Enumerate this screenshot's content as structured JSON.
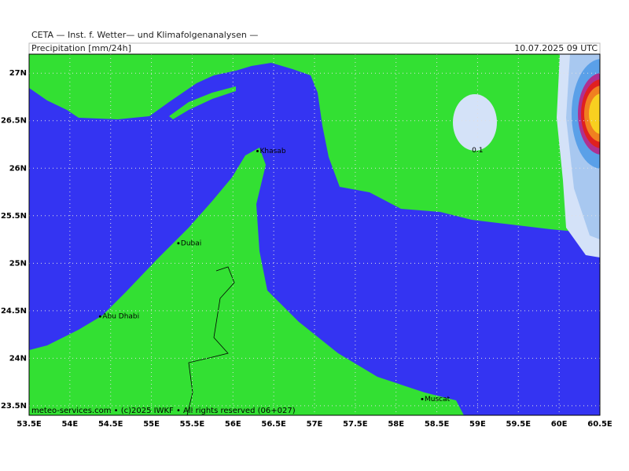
{
  "header": {
    "institute": "CETA — Inst. f. Wetter— und Klimafolgenanalysen —",
    "title": "Precipitation [mm/24h]",
    "valid_time": "10.07.2025 09 UTC"
  },
  "map": {
    "lonlim": [
      53.5,
      60.5
    ],
    "latlim": [
      23.4,
      27.2
    ],
    "lon_ticks": [
      {
        "value": 53.5,
        "label": "53.5E"
      },
      {
        "value": 54,
        "label": "54E"
      },
      {
        "value": 54.5,
        "label": "54.5E"
      },
      {
        "value": 55,
        "label": "55E"
      },
      {
        "value": 55.5,
        "label": "55.5E"
      },
      {
        "value": 56,
        "label": "56E"
      },
      {
        "value": 56.5,
        "label": "56.5E"
      },
      {
        "value": 57,
        "label": "57E"
      },
      {
        "value": 57.5,
        "label": "57.5E"
      },
      {
        "value": 58,
        "label": "58E"
      },
      {
        "value": 58.5,
        "label": "58.5E"
      },
      {
        "value": 59,
        "label": "59E"
      },
      {
        "value": 59.5,
        "label": "59.5E"
      },
      {
        "value": 60,
        "label": "60E"
      },
      {
        "value": 60.5,
        "label": "60.5E"
      }
    ],
    "lat_ticks": [
      {
        "value": 23.5,
        "label": "23.5N"
      },
      {
        "value": 24,
        "label": "24N"
      },
      {
        "value": 24.5,
        "label": "24.5N"
      },
      {
        "value": 25,
        "label": "25N"
      },
      {
        "value": 25.5,
        "label": "25.5N"
      },
      {
        "value": 26,
        "label": "26N"
      },
      {
        "value": 26.5,
        "label": "26.5N"
      },
      {
        "value": 27,
        "label": "27N"
      }
    ],
    "places": [
      {
        "name": "Khasab",
        "lon": 56.33,
        "lat": 26.18
      },
      {
        "name": "Dubai",
        "lon": 55.36,
        "lat": 25.21
      },
      {
        "name": "Abu Dhabi",
        "lon": 54.4,
        "lat": 24.44
      },
      {
        "name": "Muscat",
        "lon": 58.35,
        "lat": 23.57
      }
    ],
    "contour_labels": [
      {
        "label": "0.1",
        "lon": 58.93,
        "lat": 26.19
      }
    ]
  },
  "footer": "meteo-services.com • (c)2025 IWKF • All rights reserved (06+027)"
}
